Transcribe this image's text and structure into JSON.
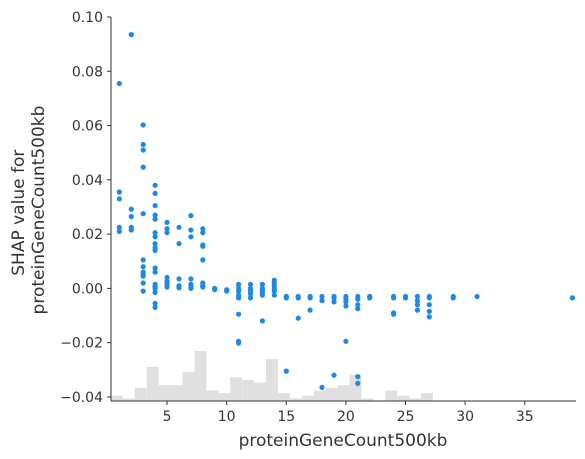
{
  "chart_data": {
    "type": "scatter",
    "title": "",
    "xlabel": "proteinGeneCount500kb",
    "ylabel_lines": [
      "SHAP value for",
      "proteinGeneCount500kb"
    ],
    "xlim": [
      0.3,
      39.3
    ],
    "ylim": [
      -0.0415,
      0.1
    ],
    "xticks": [
      5,
      10,
      15,
      20,
      25,
      30,
      35
    ],
    "xtick_labels": [
      "5",
      "10",
      "15",
      "20",
      "25",
      "30",
      "35"
    ],
    "yticks": [
      -0.04,
      -0.02,
      0.0,
      0.02,
      0.04,
      0.06,
      0.08,
      0.1
    ],
    "ytick_labels": [
      "−0.04",
      "−0.02",
      "0.00",
      "0.02",
      "0.04",
      "0.06",
      "0.08",
      "0.10"
    ],
    "grid": false,
    "legend": "none",
    "point_color": "#1e88e5",
    "histogram_color": "#e0e0e0",
    "histogram": {
      "bin_edges": [
        0.3,
        1.3,
        2.3,
        3.3,
        4.3,
        5.3,
        6.3,
        7.3,
        8.3,
        9.3,
        10.3,
        11.3,
        12.3,
        13.3,
        14.3,
        15.3,
        16.3,
        17.3,
        18.3,
        19.3,
        20.3,
        21.3,
        22.3,
        23.3,
        24.3,
        25.3,
        26.3,
        27.3,
        28.3,
        29.3,
        30.3,
        31.3,
        32.3,
        33.3,
        34.3,
        35.3,
        36.3,
        37.3,
        38.3,
        39.3
      ],
      "counts": [
        2,
        1,
        5,
        13,
        6,
        6,
        11,
        19,
        4,
        3,
        9,
        8,
        7,
        16,
        3,
        1,
        2,
        4,
        5,
        6,
        10,
        1,
        0,
        4,
        2,
        1,
        3,
        0,
        0,
        0,
        0,
        0,
        0,
        0,
        0,
        0,
        0,
        0,
        0
      ]
    },
    "points": [
      [
        1,
        0.0755
      ],
      [
        1,
        0.0355
      ],
      [
        1,
        0.033
      ],
      [
        1,
        0.0225
      ],
      [
        1,
        0.021
      ],
      [
        2,
        0.0935
      ],
      [
        2,
        0.0292
      ],
      [
        2,
        0.0265
      ],
      [
        2,
        0.0225
      ],
      [
        2,
        0.0215
      ],
      [
        3,
        0.0602
      ],
      [
        3,
        0.053
      ],
      [
        3,
        0.051
      ],
      [
        3,
        0.0447
      ],
      [
        3,
        0.0275
      ],
      [
        3,
        0.0105
      ],
      [
        3,
        0.008
      ],
      [
        3,
        0.006
      ],
      [
        3,
        0.005
      ],
      [
        3,
        0.0045
      ],
      [
        3,
        0.002
      ],
      [
        3,
        -0.001
      ],
      [
        4,
        0.038
      ],
      [
        4,
        0.035
      ],
      [
        4,
        0.0305
      ],
      [
        4,
        0.027
      ],
      [
        4,
        0.0255
      ],
      [
        4,
        0.0205
      ],
      [
        4,
        0.019
      ],
      [
        4,
        0.0165
      ],
      [
        4,
        0.015
      ],
      [
        4,
        0.014
      ],
      [
        4,
        0.0075
      ],
      [
        4,
        0.006
      ],
      [
        4,
        0.0015
      ],
      [
        4,
        0.0005
      ],
      [
        4,
        0.0
      ],
      [
        4,
        -0.0015
      ],
      [
        4,
        -0.0055
      ],
      [
        4,
        -0.007
      ],
      [
        5,
        0.0243
      ],
      [
        5,
        0.022
      ],
      [
        5,
        0.0205
      ],
      [
        5,
        0.004
      ],
      [
        5,
        0.0025
      ],
      [
        5,
        0.0015
      ],
      [
        5,
        0.0005
      ],
      [
        6,
        0.0225
      ],
      [
        6,
        0.0165
      ],
      [
        6,
        0.0035
      ],
      [
        6,
        0.001
      ],
      [
        6,
        0.0002
      ],
      [
        7,
        0.0268
      ],
      [
        7,
        0.0215
      ],
      [
        7,
        0.019
      ],
      [
        7,
        0.0035
      ],
      [
        7,
        0.0015
      ],
      [
        7,
        0.0005
      ],
      [
        7,
        0.0
      ],
      [
        8,
        0.022
      ],
      [
        8,
        0.0205
      ],
      [
        8,
        0.016
      ],
      [
        8,
        0.0155
      ],
      [
        8,
        0.0105
      ],
      [
        8,
        0.002
      ],
      [
        8,
        0.001
      ],
      [
        8,
        0.0005
      ],
      [
        9,
        0.0
      ],
      [
        9,
        -0.0005
      ],
      [
        10,
        -0.0005
      ],
      [
        10,
        -0.001
      ],
      [
        11,
        0.0015
      ],
      [
        11,
        0.0
      ],
      [
        11,
        -0.001
      ],
      [
        11,
        -0.0025
      ],
      [
        11,
        -0.0035
      ],
      [
        11,
        -0.0095
      ],
      [
        11,
        -0.0195
      ],
      [
        11,
        -0.0202
      ],
      [
        12,
        0.0015
      ],
      [
        12,
        0.0
      ],
      [
        12,
        -0.001
      ],
      [
        12,
        -0.002
      ],
      [
        12,
        -0.0035
      ],
      [
        13,
        0.0015
      ],
      [
        13,
        0.0
      ],
      [
        13,
        -0.0005
      ],
      [
        13,
        -0.0015
      ],
      [
        13,
        -0.0025
      ],
      [
        13,
        -0.012
      ],
      [
        14,
        0.003
      ],
      [
        14,
        0.002
      ],
      [
        14,
        0.001
      ],
      [
        14,
        0.0
      ],
      [
        14,
        -0.001
      ],
      [
        14,
        -0.0025
      ],
      [
        15,
        -0.003
      ],
      [
        15,
        -0.0035
      ],
      [
        15,
        -0.0305
      ],
      [
        16,
        -0.003
      ],
      [
        16,
        -0.0035
      ],
      [
        16,
        -0.011
      ],
      [
        17,
        -0.003
      ],
      [
        17,
        -0.0035
      ],
      [
        17,
        -0.008
      ],
      [
        18,
        -0.003
      ],
      [
        18,
        -0.0045
      ],
      [
        18,
        -0.0365
      ],
      [
        19,
        -0.003
      ],
      [
        19,
        -0.0035
      ],
      [
        19,
        -0.005
      ],
      [
        19,
        -0.032
      ],
      [
        20,
        -0.003
      ],
      [
        20,
        -0.004
      ],
      [
        20,
        -0.005
      ],
      [
        20,
        -0.0065
      ],
      [
        20,
        -0.0195
      ],
      [
        21,
        -0.003
      ],
      [
        21,
        -0.004
      ],
      [
        21,
        -0.006
      ],
      [
        21,
        -0.0075
      ],
      [
        21,
        -0.0325
      ],
      [
        21,
        -0.035
      ],
      [
        22,
        -0.003
      ],
      [
        22,
        -0.0035
      ],
      [
        24,
        -0.003
      ],
      [
        24,
        -0.0035
      ],
      [
        24,
        -0.009
      ],
      [
        24,
        -0.0095
      ],
      [
        25,
        -0.003
      ],
      [
        25,
        -0.0035
      ],
      [
        26,
        -0.003
      ],
      [
        26,
        -0.0045
      ],
      [
        26,
        -0.006
      ],
      [
        26,
        -0.008
      ],
      [
        27,
        -0.003
      ],
      [
        27,
        -0.0035
      ],
      [
        27,
        -0.006
      ],
      [
        27,
        -0.0085
      ],
      [
        27,
        -0.0105
      ],
      [
        29,
        -0.003
      ],
      [
        29,
        -0.0035
      ],
      [
        31,
        -0.003
      ],
      [
        39,
        -0.0035
      ]
    ]
  }
}
